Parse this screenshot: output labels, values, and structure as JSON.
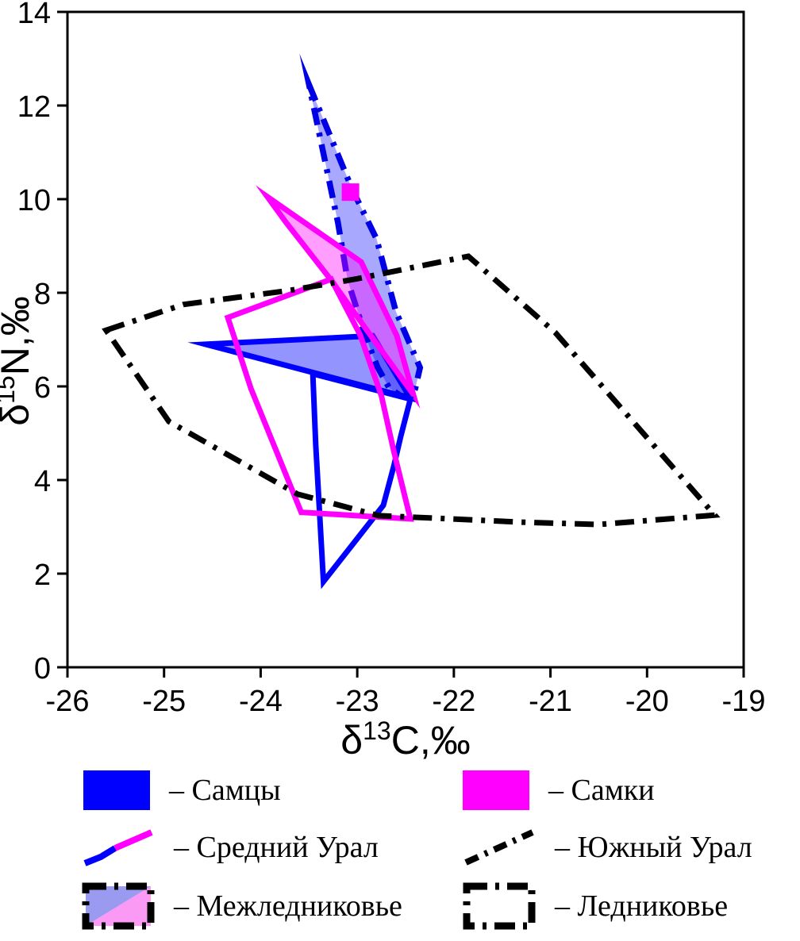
{
  "figure": {
    "xlabel_parts": {
      "base": "δ",
      "sup": "13",
      "rest": "C,‰"
    },
    "ylabel_parts": {
      "base": "δ",
      "sup": "15",
      "rest": "N,‰"
    }
  },
  "colors": {
    "male": "#0000ff",
    "female": "#ff00ff",
    "black": "#000000",
    "interglacial_blue": "#9a9af0",
    "interglacial_pink": "#fb9af5"
  },
  "chart_data": {
    "type": "scatter",
    "title": "",
    "xlabel": "δ13C,‰",
    "ylabel": "δ15N,‰",
    "xlim": [
      -26,
      -19
    ],
    "ylim": [
      0,
      14
    ],
    "x_ticks": [
      -26,
      -25,
      -24,
      -23,
      -22,
      -21,
      -20,
      -19
    ],
    "y_ticks": [
      0,
      2,
      4,
      6,
      8,
      10,
      12,
      14
    ],
    "grid": false,
    "legend_position": "bottom",
    "series": [
      {
        "name": "males-middle-ural-interglacial-polygon",
        "group": "Самцы, Средний Урал, Межледниковье",
        "stroke": "#0000ff",
        "stroke_width": 7,
        "dash": "",
        "fill": "#0000ff",
        "fill_opacity": 0.42,
        "points": [
          [
            -24.57,
            6.9
          ],
          [
            -22.84,
            7.08
          ],
          [
            -22.45,
            5.75
          ]
        ]
      },
      {
        "name": "males-south-ural-interglacial-polygon",
        "group": "Самцы, Южный Урал, Межледниковье",
        "stroke": "#0000e6",
        "stroke_width": 7.5,
        "dash": "22 10 5 10",
        "fill": "#0000ff",
        "fill_opacity": 0.34,
        "points": [
          [
            -23.5,
            12.45
          ],
          [
            -23.05,
            10.2
          ],
          [
            -22.8,
            9.15
          ],
          [
            -22.6,
            7.6
          ],
          [
            -22.35,
            6.4
          ],
          [
            -22.4,
            5.95
          ],
          [
            -22.44,
            5.78
          ],
          [
            -22.55,
            5.8
          ],
          [
            -22.67,
            5.97
          ],
          [
            -22.79,
            6.41
          ],
          [
            -22.87,
            6.83
          ],
          [
            -22.95,
            7.3
          ],
          [
            -23.1,
            8.27
          ],
          [
            -23.2,
            9.5
          ]
        ]
      },
      {
        "name": "females-middle-ural-interglacial-polygon",
        "group": "Самки, Средний Урал, Межледниковье",
        "stroke": "#ff00ff",
        "stroke_width": 7,
        "dash": "",
        "fill": "#ff00ff",
        "fill_opacity": 0.38,
        "points": [
          [
            -23.93,
            10.05
          ],
          [
            -22.96,
            8.66
          ],
          [
            -22.59,
            7.08
          ],
          [
            -22.42,
            5.83
          ],
          [
            -22.88,
            7.14
          ],
          [
            -23.27,
            8.27
          ],
          [
            -23.74,
            9.51
          ]
        ]
      },
      {
        "name": "males-middle-ural-glacial-polygon",
        "group": "Самцы, Средний Урал, Ледниковье",
        "stroke": "#0000ff",
        "stroke_width": 7,
        "dash": "",
        "fill": "none",
        "fill_opacity": 0,
        "points": [
          [
            -23.46,
            6.27
          ],
          [
            -22.45,
            5.73
          ],
          [
            -22.55,
            4.93
          ],
          [
            -22.62,
            4.31
          ],
          [
            -22.73,
            3.46
          ],
          [
            -23.35,
            1.83
          ],
          [
            -23.43,
            4.76
          ]
        ]
      },
      {
        "name": "females-middle-ural-glacial-polygon",
        "group": "Самки, Средний Урал, Ледниковье",
        "stroke": "#ff00ff",
        "stroke_width": 7,
        "dash": "",
        "fill": "none",
        "fill_opacity": 0,
        "points": [
          [
            -24.34,
            7.47
          ],
          [
            -23.27,
            8.29
          ],
          [
            -22.97,
            7.1
          ],
          [
            -22.75,
            5.8
          ],
          [
            -22.62,
            4.6
          ],
          [
            -22.45,
            3.17
          ],
          [
            -23.58,
            3.31
          ],
          [
            -24.1,
            5.95
          ]
        ]
      },
      {
        "name": "south-ural-glacial-polygon",
        "group": "Южный Урал, Ледниковье",
        "stroke": "#000000",
        "stroke_width": 7,
        "dash": "24 11 5 11",
        "fill": "none",
        "fill_opacity": 0,
        "points": [
          [
            -25.6,
            7.2
          ],
          [
            -24.8,
            7.75
          ],
          [
            -23.7,
            8.05
          ],
          [
            -23.0,
            8.3
          ],
          [
            -21.85,
            8.78
          ],
          [
            -20.95,
            7.15
          ],
          [
            -19.3,
            3.25
          ],
          [
            -20.5,
            3.05
          ],
          [
            -21.3,
            3.1
          ],
          [
            -22.78,
            3.24
          ],
          [
            -23.62,
            3.7
          ],
          [
            -24.95,
            5.25
          ]
        ]
      }
    ],
    "markers": [
      {
        "name": "female-point-marker",
        "shape": "square",
        "x": -23.07,
        "y": 10.15,
        "size": 22,
        "color": "#ff00ff"
      }
    ]
  },
  "legend": {
    "items": [
      {
        "label": "– Самцы",
        "symbol": "rect-male"
      },
      {
        "label": "– Самки",
        "symbol": "rect-female"
      },
      {
        "label": "– Средний Урал",
        "symbol": "line-two-color"
      },
      {
        "label": "– Южный Урал",
        "symbol": "line-dash-black"
      },
      {
        "label": "– Межледниковье",
        "symbol": "box-filled-split"
      },
      {
        "label": "– Ледниковье",
        "symbol": "box-empty"
      }
    ]
  }
}
